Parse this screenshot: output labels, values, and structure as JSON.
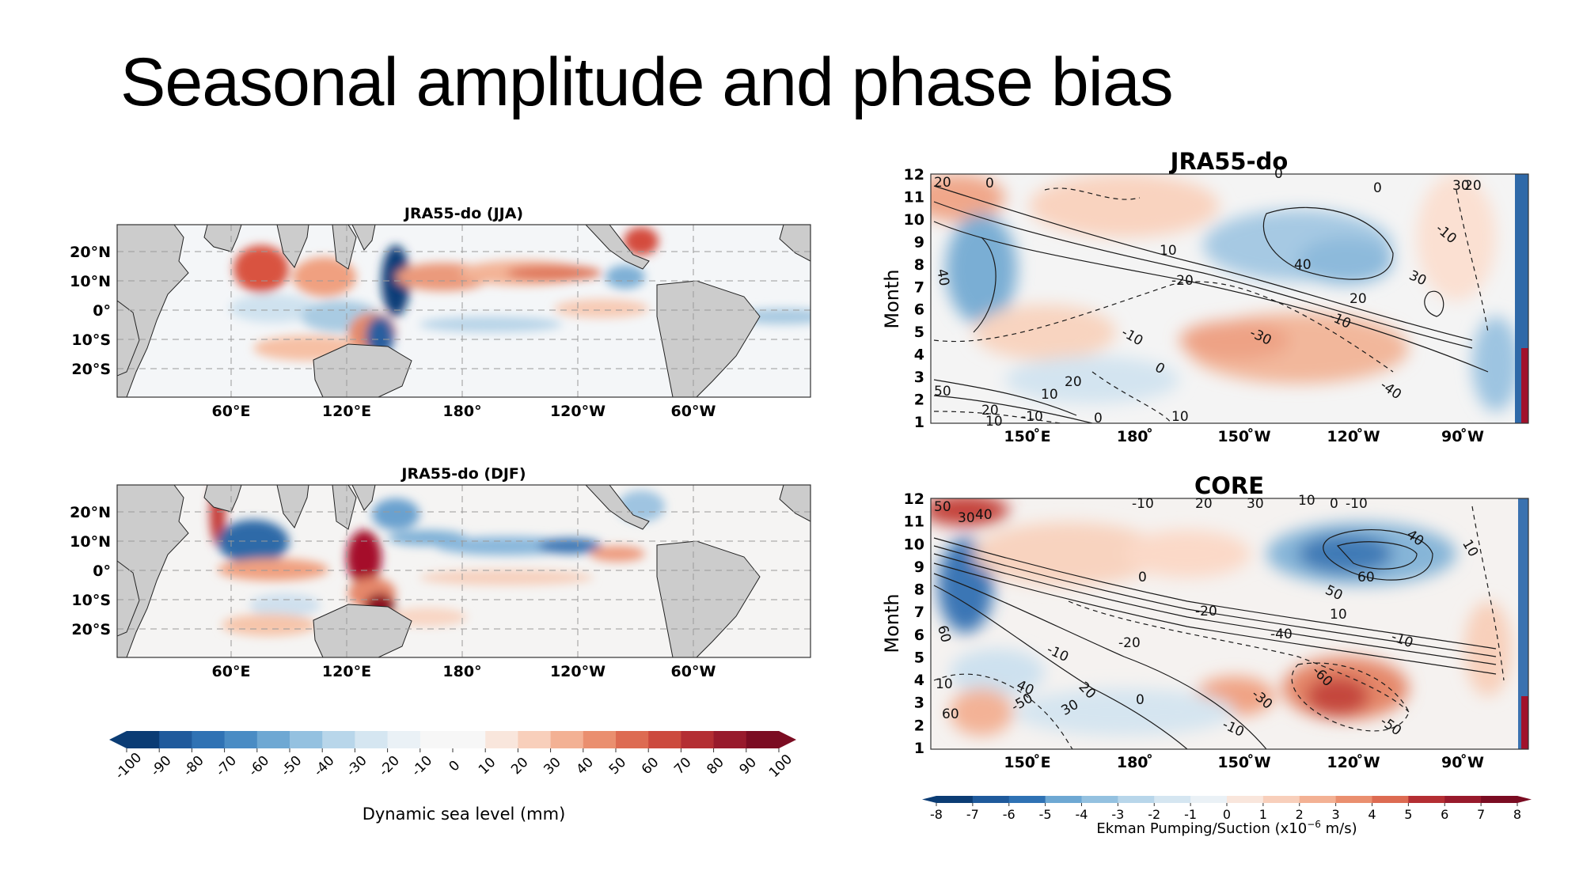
{
  "slide": {
    "title": "Seasonal amplitude and phase bias"
  },
  "colors": {
    "negative_strong": "#1c4f8f",
    "negative_mid": "#6fa6d0",
    "negative_light": "#dbe9f3",
    "neutral": "#f7f7f7",
    "positive_light": "#fbdcc9",
    "positive_mid": "#e48a6c",
    "positive_strong": "#8a0f24",
    "land": "#cccccc",
    "contour": "#1a1a1a"
  },
  "chart_data": [
    {
      "type": "heatmap",
      "title": "JRA55-do (JJA)",
      "xlabel": "",
      "ylabel": "",
      "x_ticks": [
        "60°E",
        "120°E",
        "180°",
        "120°W",
        "60°W"
      ],
      "y_ticks": [
        "20°N",
        "10°N",
        "0°",
        "10°S",
        "20°S"
      ],
      "grid": true,
      "features": [
        {
          "region": "Arabian Sea",
          "value": 60
        },
        {
          "region": "Bay of Bengal",
          "value": 80
        },
        {
          "region": "South China Sea",
          "value": -90
        },
        {
          "region": "Equatorial Indian Ocean",
          "value": -40
        },
        {
          "region": "Western Pacific 10°N",
          "value": 40
        },
        {
          "region": "Central Pacific 10°N",
          "value": 60
        },
        {
          "region": "Equatorial Pacific",
          "value": -20
        },
        {
          "region": "Gulf of Carpentaria",
          "value": -90
        }
      ]
    },
    {
      "type": "heatmap",
      "title": "JRA55-do (DJF)",
      "xlabel": "",
      "ylabel": "",
      "x_ticks": [
        "60°E",
        "120°E",
        "180°",
        "120°W",
        "60°W"
      ],
      "y_ticks": [
        "20°N",
        "10°N",
        "0°",
        "10°S",
        "20°S"
      ],
      "grid": true,
      "features": [
        {
          "region": "Red Sea",
          "value": 70
        },
        {
          "region": "Arabian Sea",
          "value": -60
        },
        {
          "region": "Gulf of Thailand",
          "value": 100
        },
        {
          "region": "Western Pacific 10°N",
          "value": -40
        },
        {
          "region": "Central Pacific 10°N",
          "value": -50
        },
        {
          "region": "South Indian Ocean 10°S",
          "value": 60
        },
        {
          "region": "Gulf of Carpentaria",
          "value": 100
        }
      ]
    },
    {
      "type": "heatmap",
      "title": "JRA55-do",
      "ylabel": "Month",
      "x_ticks": [
        "150$^\\circ$E",
        "180$^\\circ$",
        "150$^\\circ$W",
        "120$^\\circ$W",
        "90$^\\circ$W"
      ],
      "x_tick_labels": [
        "150 ̊E",
        "180 ̊",
        "150 ̊W",
        "120 ̊W",
        "90 ̊W"
      ],
      "y_ticks": [
        1,
        2,
        3,
        4,
        5,
        6,
        7,
        8,
        9,
        10,
        11,
        12
      ],
      "contour_labels": [
        "20",
        "0",
        "0",
        "30",
        "20",
        "40",
        "10",
        "40",
        "-10",
        "-20",
        "30",
        "0",
        "-10",
        "20",
        "-10",
        "-30",
        "0",
        "-40",
        "20",
        "10",
        "10",
        "0",
        "-10",
        "50",
        "20",
        "10",
        "40",
        "50",
        "-20"
      ]
    },
    {
      "type": "heatmap",
      "title": "CORE",
      "ylabel": "Month",
      "x_tick_labels": [
        "150 ̊E",
        "180 ̊",
        "150 ̊W",
        "120 ̊W",
        "90 ̊W"
      ],
      "y_ticks": [
        1,
        2,
        3,
        4,
        5,
        6,
        7,
        8,
        9,
        10,
        11,
        12
      ],
      "contour_labels": [
        "50",
        "30",
        "40",
        "-10",
        "20",
        "30",
        "10",
        "0",
        "-10",
        "40",
        "10",
        "60",
        "50",
        "0",
        "10",
        "-20",
        "-20",
        "-40",
        "-10",
        "-10",
        "60",
        "40",
        "20",
        "-60",
        "-30",
        "0",
        "30",
        "-50",
        "-50",
        "-10",
        "10",
        "60"
      ]
    }
  ],
  "colorbars": [
    {
      "label": "Dynamic sea level (mm)",
      "ticks": [
        "-100",
        "-90",
        "-80",
        "-70",
        "-60",
        "-50",
        "-40",
        "-30",
        "-20",
        "-10",
        "0",
        "10",
        "20",
        "30",
        "40",
        "50",
        "60",
        "70",
        "80",
        "90",
        "100"
      ]
    },
    {
      "label": "Ekman Pumping/Suction (x10",
      "label_exp": "−6",
      "label_tail": " m/s)",
      "ticks": [
        "-8",
        "-7",
        "-6",
        "-5",
        "-4",
        "-3",
        "-2",
        "-1",
        "0",
        "1",
        "2",
        "3",
        "4",
        "5",
        "6",
        "7",
        "8"
      ]
    }
  ]
}
